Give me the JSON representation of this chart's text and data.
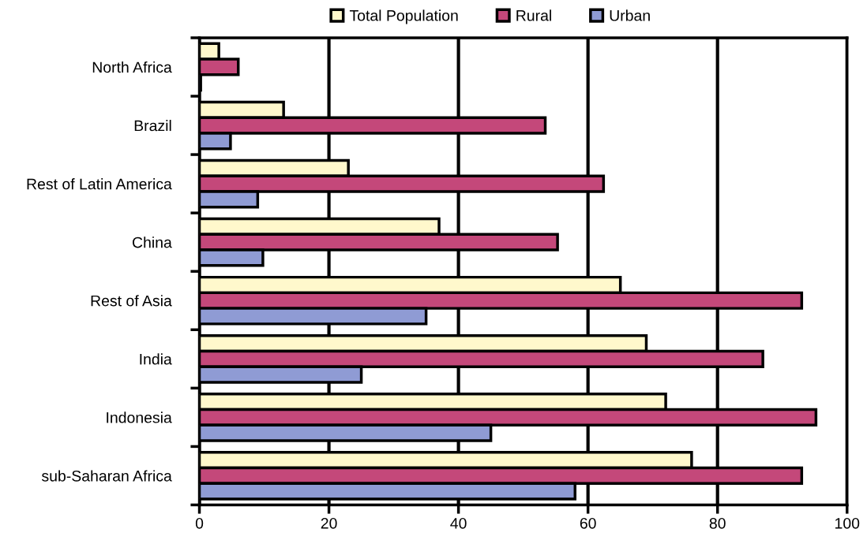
{
  "chart_data": {
    "type": "bar",
    "orientation": "horizontal",
    "categories": [
      "North Africa",
      "Brazil",
      "Rest of Latin America",
      "China",
      "Rest of Asia",
      "India",
      "Indonesia",
      "sub-Saharan Africa"
    ],
    "series": [
      {
        "name": "Total Population",
        "color": "#fff8cc",
        "values": [
          3,
          13,
          23,
          37,
          65,
          69,
          72,
          76
        ]
      },
      {
        "name": "Rural",
        "color": "#c4487a",
        "values": [
          6,
          53.4,
          62.4,
          55.3,
          93,
          87,
          95.2,
          93
        ]
      },
      {
        "name": "Urban",
        "color": "#8f9bd4",
        "values": [
          0.2,
          4.8,
          9,
          9.8,
          35,
          25,
          45,
          58
        ]
      }
    ],
    "xlim": [
      0,
      100
    ],
    "xticks": [
      0,
      20,
      40,
      60,
      80,
      100
    ],
    "grid": "x",
    "legend": "top"
  }
}
